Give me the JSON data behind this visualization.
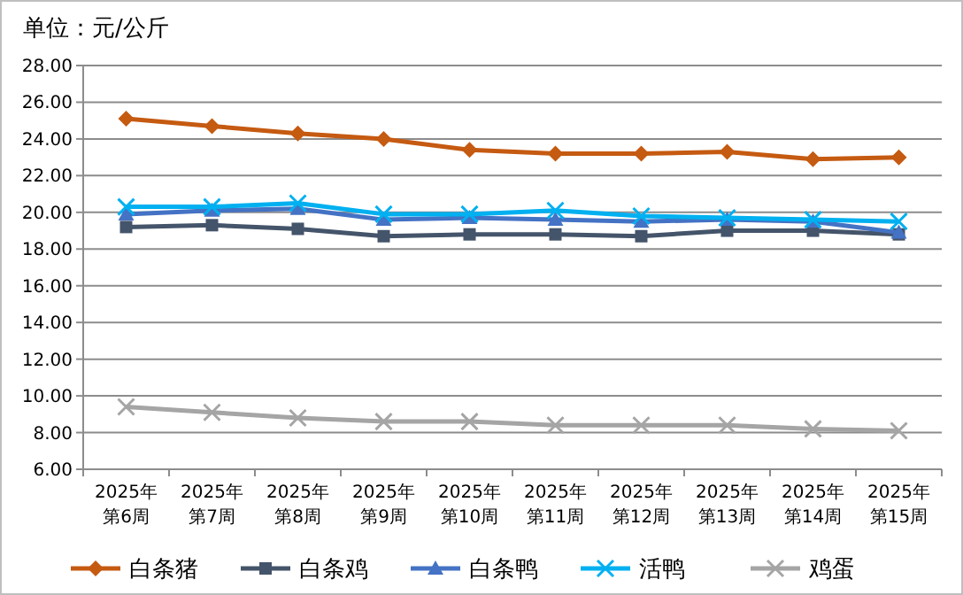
{
  "chart_data": {
    "type": "line",
    "title": "单位：元/公斤",
    "categories": [
      "2025年第6周",
      "2025年第7周",
      "2025年第8周",
      "2025年第9周",
      "2025年第10周",
      "2025年第11周",
      "2025年第12周",
      "2025年第13周",
      "2025年第14周",
      "2025年第15周"
    ],
    "series": [
      {
        "name": "白条猪",
        "color": "#c55a11",
        "marker": "diamond",
        "values": [
          25.1,
          24.7,
          24.3,
          24.0,
          23.4,
          23.2,
          23.2,
          23.3,
          22.9,
          23.0
        ]
      },
      {
        "name": "白条鸡",
        "color": "#44546a",
        "marker": "square",
        "values": [
          19.2,
          19.3,
          19.1,
          18.7,
          18.8,
          18.8,
          18.7,
          19.0,
          19.0,
          18.8
        ]
      },
      {
        "name": "白条鸭",
        "color": "#4472c4",
        "marker": "triangle",
        "values": [
          19.9,
          20.1,
          20.2,
          19.6,
          19.7,
          19.6,
          19.5,
          19.6,
          19.5,
          18.9
        ]
      },
      {
        "name": "活鸭",
        "color": "#00b0f0",
        "marker": "cross",
        "values": [
          20.3,
          20.3,
          20.5,
          19.9,
          19.9,
          20.1,
          19.8,
          19.7,
          19.6,
          19.5
        ]
      },
      {
        "name": "鸡蛋",
        "color": "#a5a5a5",
        "marker": "cross",
        "values": [
          9.4,
          9.1,
          8.8,
          8.6,
          8.6,
          8.4,
          8.4,
          8.4,
          8.2,
          8.1
        ]
      }
    ],
    "ylim": [
      6,
      28
    ],
    "yticks": [
      {
        "value": 6,
        "label": "6.00"
      },
      {
        "value": 8,
        "label": "8.00"
      },
      {
        "value": 10,
        "label": "10.00"
      },
      {
        "value": 12,
        "label": "12.00"
      },
      {
        "value": 14,
        "label": "14.00"
      },
      {
        "value": 16,
        "label": "16.00"
      },
      {
        "value": 18,
        "label": "18.00"
      },
      {
        "value": 20,
        "label": "20.00"
      },
      {
        "value": 22,
        "label": "22.00"
      },
      {
        "value": 24,
        "label": "24.00"
      },
      {
        "value": 26,
        "label": "26.00"
      },
      {
        "value": 28,
        "label": "28.00"
      }
    ],
    "grid": "y",
    "legend": "bottom"
  }
}
